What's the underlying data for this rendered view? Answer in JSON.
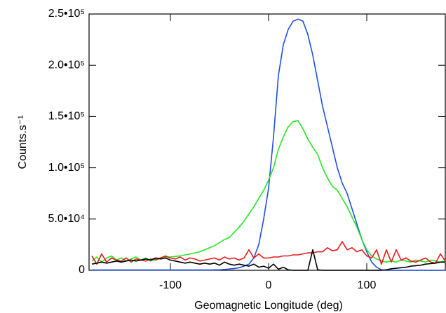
{
  "chart_data": {
    "type": "line",
    "xlabel": "Geomagnetic Longitude (deg)",
    "ylabel": "Counts.s⁻¹",
    "xlim": [
      -180,
      180
    ],
    "xticks": [
      -100,
      0,
      100
    ],
    "ylim": [
      0,
      250000
    ],
    "yticks": [
      0,
      {
        "value": 50000,
        "label": "5.0•10⁴"
      },
      {
        "value": 100000,
        "label": "1.0•10⁵"
      },
      {
        "value": 150000,
        "label": "1.5•10⁵"
      },
      {
        "value": 200000,
        "label": "2.0•10⁵"
      },
      {
        "value": 250000,
        "label": "2.5•10⁵"
      }
    ],
    "x": [
      -180,
      -175,
      -170,
      -165,
      -160,
      -155,
      -150,
      -145,
      -140,
      -135,
      -130,
      -125,
      -120,
      -115,
      -110,
      -105,
      -100,
      -95,
      -90,
      -85,
      -80,
      -75,
      -70,
      -65,
      -60,
      -55,
      -50,
      -45,
      -40,
      -35,
      -30,
      -25,
      -20,
      -15,
      -10,
      -5,
      0,
      5,
      10,
      15,
      20,
      25,
      30,
      35,
      40,
      45,
      50,
      55,
      60,
      65,
      70,
      75,
      80,
      85,
      90,
      95,
      100,
      105,
      110,
      115,
      120,
      125,
      130,
      135,
      140,
      145,
      150,
      155,
      160,
      165,
      170,
      175,
      180
    ],
    "series": [
      {
        "color": "#1f4fe0",
        "values": [
          300,
          300,
          300,
          300,
          300,
          300,
          300,
          300,
          300,
          300,
          300,
          300,
          300,
          300,
          300,
          300,
          300,
          300,
          300,
          300,
          300,
          300,
          300,
          300,
          300,
          400,
          500,
          800,
          1200,
          1800,
          2500,
          4000,
          6000,
          12000,
          25000,
          50000,
          80000,
          130000,
          190000,
          220000,
          235000,
          243000,
          245000,
          243000,
          230000,
          210000,
          185000,
          160000,
          140000,
          120000,
          100000,
          85000,
          75000,
          60000,
          45000,
          30000,
          18000,
          8000,
          3000,
          500,
          0,
          0,
          0,
          0,
          0,
          0,
          0,
          0,
          0,
          0,
          0,
          0,
          0
        ]
      },
      {
        "color": "#22e822",
        "values": [
          9000,
          13000,
          8000,
          12000,
          14000,
          10000,
          12000,
          9000,
          11000,
          13000,
          10000,
          12000,
          9000,
          11000,
          12000,
          13000,
          13000,
          13500,
          14000,
          15000,
          16000,
          17000,
          18000,
          20000,
          22000,
          24000,
          27000,
          30000,
          32000,
          37000,
          42000,
          48000,
          55000,
          62000,
          70000,
          78000,
          88000,
          100000,
          118000,
          130000,
          140000,
          145000,
          146000,
          138000,
          128000,
          120000,
          113000,
          100000,
          90000,
          82000,
          78000,
          70000,
          62000,
          52000,
          42000,
          30000,
          20000,
          14000,
          11000,
          9000,
          8000,
          9000,
          8000,
          10000,
          9000,
          8000,
          10000,
          9000,
          8000,
          10000,
          9000,
          8000,
          9000
        ]
      },
      {
        "color": "#e81a1a",
        "values": [
          14000,
          6000,
          16000,
          8000,
          12000,
          10000,
          9000,
          12000,
          8000,
          11000,
          10000,
          9000,
          11000,
          10000,
          12000,
          14000,
          12000,
          11000,
          13000,
          10000,
          12000,
          11000,
          9000,
          10000,
          11000,
          12000,
          10000,
          13000,
          11000,
          12000,
          10000,
          12000,
          20000,
          12000,
          16000,
          12000,
          12000,
          13000,
          13000,
          14000,
          14000,
          15000,
          15000,
          16000,
          17000,
          17000,
          18000,
          18000,
          22000,
          19000,
          20000,
          28000,
          20000,
          22000,
          18000,
          20000,
          14000,
          12000,
          20000,
          6000,
          20000,
          8000,
          20000,
          10000,
          12000,
          9000,
          8000,
          10000,
          12000,
          8000,
          7000,
          16000,
          9000
        ]
      },
      {
        "color": "#000000",
        "values": [
          6000,
          7000,
          8000,
          7000,
          8000,
          9000,
          8000,
          9000,
          10000,
          9000,
          10000,
          11000,
          10000,
          12000,
          11000,
          12000,
          10000,
          9000,
          8000,
          7000,
          8000,
          7000,
          6000,
          7000,
          6000,
          7000,
          5000,
          8000,
          6000,
          5000,
          6000,
          5000,
          4000,
          6000,
          3000,
          4000,
          2000,
          6000,
          1000,
          3000,
          500,
          0,
          0,
          0,
          0,
          20000,
          500,
          0,
          0,
          0,
          0,
          0,
          0,
          0,
          0,
          0,
          0,
          0,
          0,
          0,
          500,
          1500,
          2000,
          2500,
          3000,
          4000,
          4500,
          5000,
          6000,
          6500,
          7000,
          8000,
          8000
        ]
      }
    ]
  }
}
